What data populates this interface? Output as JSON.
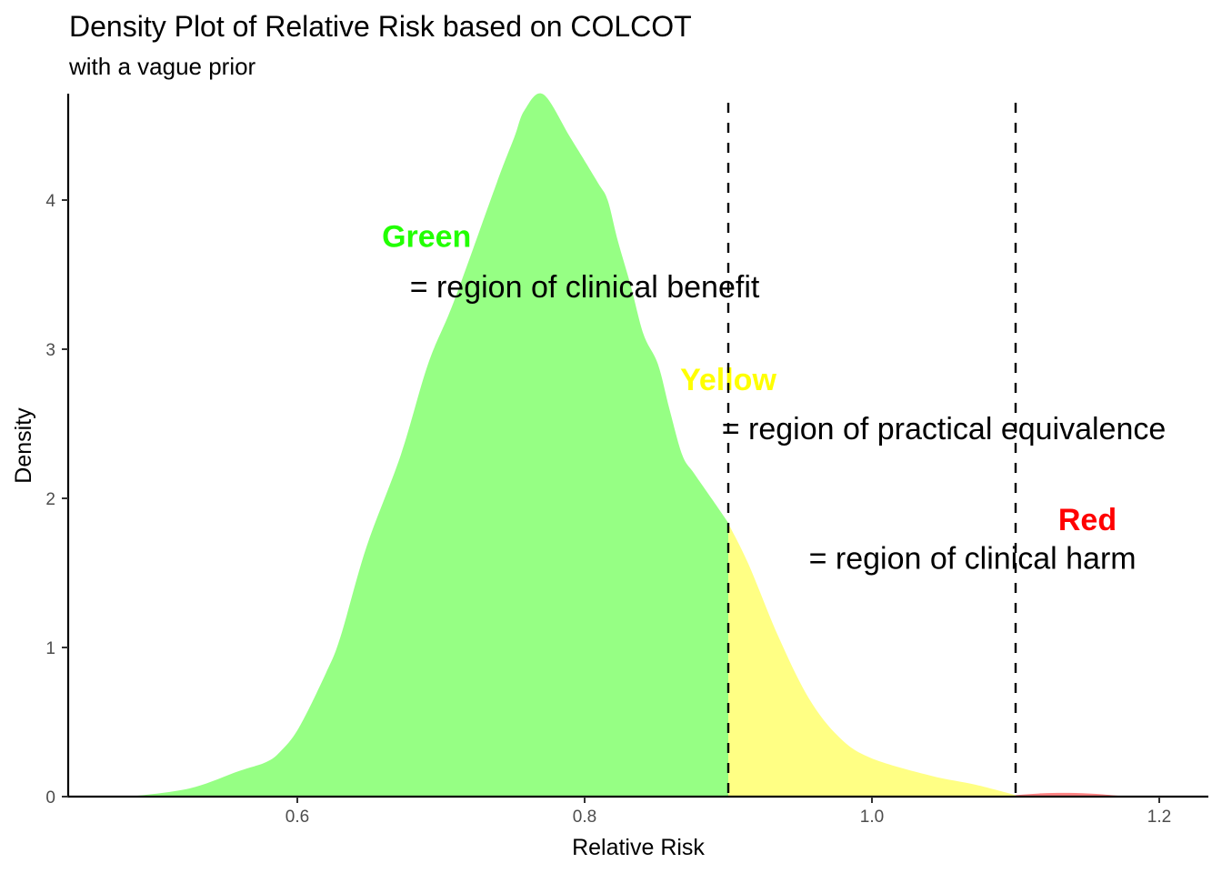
{
  "chart_data": {
    "type": "area",
    "title": "Density Plot of Relative Risk based on COLCOT",
    "subtitle": "with a vague prior",
    "xlabel": "Relative Risk",
    "ylabel": "Density",
    "xlim": [
      0.45,
      1.23
    ],
    "ylim": [
      0,
      4.75
    ],
    "x_ticks": [
      0.6,
      0.8,
      1.0,
      1.2
    ],
    "x_tick_labels": [
      "0.6",
      "0.8",
      "1.0",
      "1.2"
    ],
    "y_ticks": [
      0,
      1,
      2,
      3,
      4
    ],
    "y_tick_labels": [
      "0",
      "1",
      "2",
      "3",
      "4"
    ],
    "grid": false,
    "thresholds": [
      0.9,
      1.1
    ],
    "regions": [
      {
        "name": "benefit",
        "from": 0.48,
        "to": 0.9,
        "color": "#96ff84"
      },
      {
        "name": "equivalence",
        "from": 0.9,
        "to": 1.1,
        "color": "#ffff84"
      },
      {
        "name": "harm",
        "from": 1.1,
        "to": 1.18,
        "color": "#ff8484"
      }
    ],
    "density": {
      "x": [
        0.483,
        0.525,
        0.559,
        0.578,
        0.588,
        0.601,
        0.62,
        0.63,
        0.648,
        0.672,
        0.691,
        0.709,
        0.739,
        0.751,
        0.758,
        0.771,
        0.79,
        0.809,
        0.816,
        0.823,
        0.832,
        0.841,
        0.851,
        0.859,
        0.868,
        0.876,
        0.889,
        0.899,
        0.914,
        0.935,
        0.956,
        0.977,
        0.999,
        1.041,
        1.072,
        1.1,
        1.118,
        1.137,
        1.156,
        1.173
      ],
      "y": [
        0.0,
        0.055,
        0.17,
        0.23,
        0.3,
        0.46,
        0.83,
        1.07,
        1.67,
        2.29,
        2.9,
        3.32,
        4.12,
        4.42,
        4.6,
        4.71,
        4.42,
        4.12,
        4.0,
        3.73,
        3.43,
        3.1,
        2.9,
        2.6,
        2.29,
        2.17,
        1.99,
        1.85,
        1.56,
        1.07,
        0.66,
        0.4,
        0.26,
        0.14,
        0.08,
        0.01,
        0.022,
        0.025,
        0.018,
        0.005
      ]
    },
    "annotations": [
      {
        "label": "Green",
        "color": "#22ff00",
        "bold": true,
        "x": 0.69,
        "y": 3.76
      },
      {
        "label": "= region of clinical benefit",
        "color": "#000000",
        "bold": false,
        "x": 0.8,
        "y": 3.42
      },
      {
        "label": "Yellow",
        "color": "#ffff00",
        "bold": true,
        "x": 0.9,
        "y": 2.8
      },
      {
        "label": "= region of practical equivalence",
        "color": "#000000",
        "bold": false,
        "x": 1.05,
        "y": 2.47
      },
      {
        "label": "Red",
        "color": "#ff0000",
        "bold": true,
        "x": 1.15,
        "y": 1.86
      },
      {
        "label": "= region of clinical harm",
        "color": "#000000",
        "bold": false,
        "x": 1.07,
        "y": 1.6
      }
    ]
  }
}
